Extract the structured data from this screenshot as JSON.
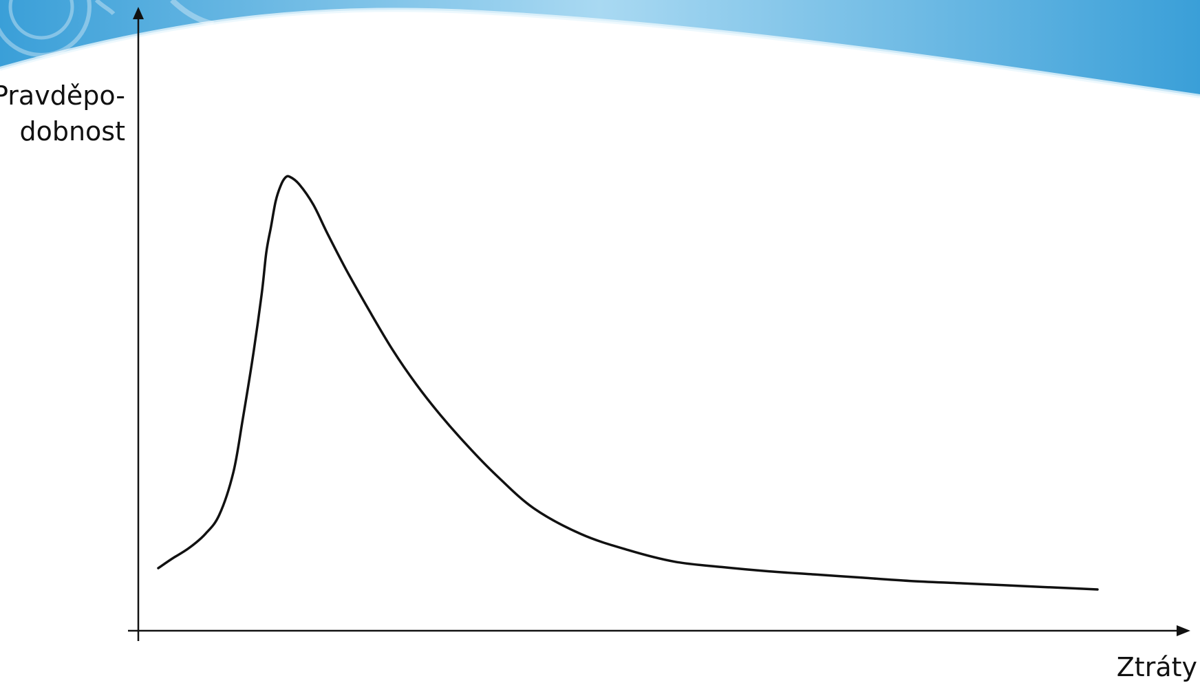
{
  "colors": {
    "background": "#ffffff",
    "header_accent_dark": "#3a9fd8",
    "header_accent_light": "#a9d9f2",
    "curve": "#111111",
    "axis": "#111111"
  },
  "chart_data": {
    "type": "line",
    "title": "",
    "ylabel_line1": "Pravděpo-",
    "ylabel_line2": "dobnost",
    "xlabel": "Ztráty",
    "grid": false,
    "legend": "none",
    "x_ticks": "none",
    "y_ticks": "none",
    "series": [
      {
        "values_description_free": true,
        "x": [
          0.0,
          1.5,
          3.3,
          5.0,
          6.5,
          8.0,
          9.0,
          10.0,
          11.0,
          11.5,
          12.0,
          12.5,
          13.0,
          13.5,
          14.0,
          15.0,
          16.5,
          18.0,
          20.0,
          22.5,
          25.0,
          27.5,
          30.0,
          33.0,
          36.0,
          40.0,
          45.0,
          50.0,
          55.0,
          60.0,
          65.0,
          70.0,
          75.0,
          80.0,
          85.0,
          90.0,
          95.0,
          100.0
        ],
        "y": [
          0.0,
          4.5,
          9.5,
          16.0,
          25.0,
          45.0,
          70.0,
          97.0,
          128.0,
          148.0,
          160.0,
          172.0,
          179.0,
          183.0,
          183.5,
          180.0,
          170.5,
          157.0,
          140.0,
          120.5,
          102.0,
          86.0,
          72.0,
          57.0,
          43.5,
          28.0,
          16.0,
          8.5,
          3.0,
          0.5,
          -1.5,
          -3.0,
          -4.5,
          -6.0,
          -7.0,
          -8.0,
          -9.0,
          -10.0
        ]
      }
    ],
    "xlim": [
      0,
      100
    ],
    "ylim": [
      -10,
      183.5
    ]
  }
}
